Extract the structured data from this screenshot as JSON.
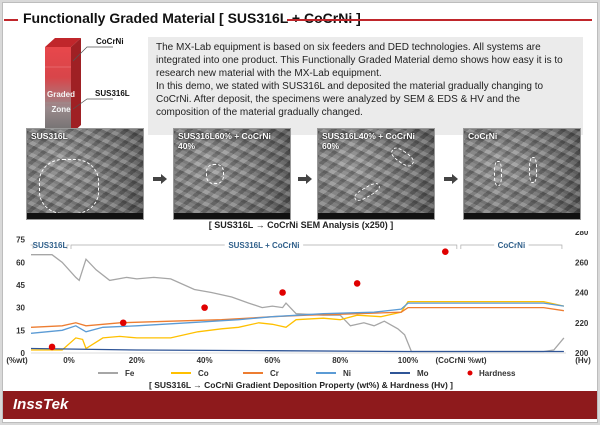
{
  "title": "Functionally Graded Material [ SUS316L + CoCrNi ]",
  "block": {
    "top_label": "CoCrNi",
    "bottom_label": "SUS316L",
    "zone_line1": "Graded",
    "zone_line2": "Zone"
  },
  "description": [
    "The MX-Lab equipment is based on six feeders and DED technologies. All systems are integrated into one product. This Functionally Graded Material demo shows how easy it is to research new material with the MX-Lab equipment.",
    "In this demo, we stated with SUS316L and deposited the material gradually changing to CoCrNi. After deposit, the specimens were analyzed by SEM & EDS & HV and the composition of the material gradually changed."
  ],
  "sem_images": [
    {
      "label": "SUS316L"
    },
    {
      "label": "SUS316L60% + CoCrNi 40%"
    },
    {
      "label": "SUS316L40% + CoCrNi 60%"
    },
    {
      "label": "CoCrNi"
    }
  ],
  "sem_caption": "[ SUS316L → CoCrNi SEM Analysis (x250) ]",
  "chart_caption": "[ SUS316L → CoCrNi Gradient Deposition Property (wt%) & Hardness (Hv) ]",
  "footer": {
    "brand": "InssTek"
  },
  "colors": {
    "accent": "#c0262b",
    "footer": "#8e1a1c",
    "Fe": "#a6a6a6",
    "Co": "#ffc000",
    "Cr": "#ed7d31",
    "Ni": "#5b9bd5",
    "Mo": "#2f5597",
    "Hardness": "#e00000"
  },
  "chart_data": {
    "type": "line",
    "xlabel": "(CoCrNi %wt)",
    "ylabel_left": "(%wt)",
    "ylabel_right": "(Hv)",
    "xlim": [
      -12,
      146
    ],
    "ylim_left": [
      0,
      80
    ],
    "ylim_right": [
      200,
      280
    ],
    "x_ticks": [
      "0%",
      "20%",
      "40%",
      "60%",
      "80%",
      "100%"
    ],
    "x_tick_values": [
      0,
      20,
      40,
      60,
      80,
      100
    ],
    "y_ticks_left": [
      "0",
      "15",
      "30",
      "45",
      "60",
      "75"
    ],
    "y_ticks_right": [
      "200",
      "220",
      "240",
      "260",
      "280"
    ],
    "regions": [
      {
        "label": "SUS316L",
        "from": -12,
        "to": 0
      },
      {
        "label": "SUS316L + CoCrNi",
        "from": 0,
        "to": 115
      },
      {
        "label": "CoCrNi",
        "from": 115,
        "to": 146
      }
    ],
    "series": [
      {
        "name": "Fe",
        "x": [
          -12,
          -5,
          -2,
          2,
          3,
          5,
          8,
          12,
          17,
          20,
          25,
          30,
          37,
          42,
          48,
          53,
          57,
          60,
          63,
          64,
          67,
          75,
          80,
          83,
          87,
          90,
          93,
          97,
          99,
          101,
          140,
          143,
          146
        ],
        "values": [
          65,
          65,
          60,
          50,
          48,
          62,
          55,
          48,
          50,
          49,
          50,
          49,
          42,
          40,
          37,
          33,
          30,
          31,
          30,
          33,
          26,
          25,
          25,
          18,
          20,
          18,
          21,
          16,
          12,
          1,
          1,
          2,
          10
        ]
      },
      {
        "name": "Co",
        "x": [
          -12,
          -2,
          2,
          4,
          5,
          10,
          15,
          20,
          30,
          38,
          45,
          50,
          56,
          60,
          64,
          67,
          75,
          80,
          85,
          92,
          98,
          100,
          140,
          146
        ],
        "values": [
          2,
          2,
          10,
          9,
          3,
          10,
          11,
          10,
          10,
          14,
          16,
          17,
          20,
          19,
          17,
          22,
          23,
          22,
          25,
          24,
          27,
          34,
          34,
          31
        ]
      },
      {
        "name": "Cr",
        "x": [
          -12,
          -2,
          2,
          5,
          15,
          30,
          45,
          60,
          70,
          85,
          98,
          100,
          140,
          146
        ],
        "values": [
          17,
          18,
          20,
          18,
          20,
          21,
          22,
          24,
          25,
          26,
          27,
          30,
          30,
          28
        ]
      },
      {
        "name": "Ni",
        "x": [
          -12,
          -2,
          2,
          5,
          10,
          20,
          35,
          50,
          60,
          75,
          90,
          98,
          100,
          140,
          146
        ],
        "values": [
          13,
          15,
          18,
          14,
          17,
          18,
          20,
          22,
          24,
          26,
          27,
          29,
          33,
          33,
          31
        ]
      },
      {
        "name": "Mo",
        "x": [
          -12,
          20,
          60,
          100,
          146
        ],
        "values": [
          3,
          2,
          1.5,
          1,
          1
        ]
      }
    ],
    "hardness": {
      "name": "Hardness",
      "x": [
        -5,
        16,
        40,
        63,
        85,
        111
      ],
      "values": [
        204,
        220,
        230,
        240,
        246,
        267
      ]
    },
    "legend": [
      "Fe",
      "Co",
      "Cr",
      "Ni",
      "Mo",
      "Hardness"
    ],
    "legend_position": "bottom"
  }
}
